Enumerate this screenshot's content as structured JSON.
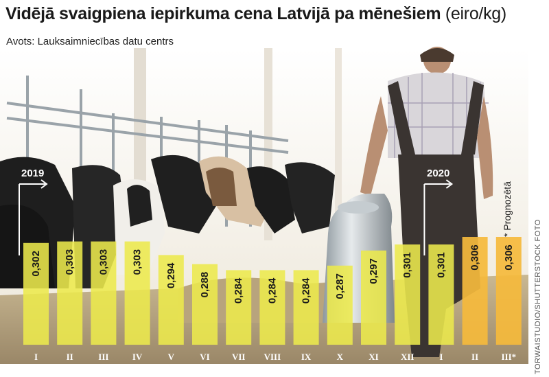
{
  "title": "Vidējā svaigpiena iepirkuma cena Latvijā pa mēnešiem",
  "title_unit": "(eiro/kg)",
  "source": "Avots: Lauksaimniecības datu centrs",
  "credit": "TORWAISTUDIO/SHUTTERSTOCK FOTO",
  "forecast_note": "* Prognozētā",
  "year_markers": [
    "2019",
    "2020"
  ],
  "colors": {
    "bar_actual": "#ece94c",
    "bar_forecast": "#f5ba3c",
    "text": "#1a1a1a"
  },
  "chart_data": {
    "type": "bar",
    "title": "Vidējā svaigpiena iepirkuma cena Latvijā pa mēnešiem",
    "ylabel": "(eiro/kg)",
    "ylim": [
      0,
      0.306
    ],
    "categories": [
      "I",
      "II",
      "III",
      "IV",
      "V",
      "VI",
      "VII",
      "VIII",
      "IX",
      "X",
      "XI",
      "XII",
      "I",
      "II",
      "III*"
    ],
    "values": [
      0.302,
      0.303,
      0.303,
      0.303,
      0.294,
      0.288,
      0.284,
      0.284,
      0.284,
      0.287,
      0.297,
      0.301,
      0.301,
      0.306,
      0.306
    ],
    "value_labels": [
      "0,302",
      "0,303",
      "0,303",
      "0,303",
      "0,294",
      "0,288",
      "0,284",
      "0,284",
      "0,284",
      "0,287",
      "0,297",
      "0,301",
      "0,301",
      "0,306",
      "0,306"
    ],
    "forecast": [
      false,
      false,
      false,
      false,
      false,
      false,
      false,
      false,
      false,
      false,
      false,
      false,
      false,
      true,
      true
    ],
    "years": [
      {
        "label": "2019",
        "start": 0
      },
      {
        "label": "2020",
        "start": 12
      }
    ],
    "grid": false,
    "legend": "none"
  }
}
